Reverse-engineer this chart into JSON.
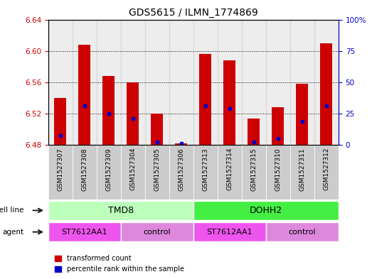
{
  "title": "GDS5615 / ILMN_1774869",
  "samples": [
    "GSM1527307",
    "GSM1527308",
    "GSM1527309",
    "GSM1527304",
    "GSM1527305",
    "GSM1527306",
    "GSM1527313",
    "GSM1527314",
    "GSM1527315",
    "GSM1527310",
    "GSM1527311",
    "GSM1527312"
  ],
  "bar_bottom": 6.48,
  "bar_tops": [
    6.54,
    6.608,
    6.568,
    6.56,
    6.52,
    6.482,
    6.596,
    6.588,
    6.514,
    6.528,
    6.558,
    6.61
  ],
  "percentile_values": [
    6.492,
    6.53,
    6.52,
    6.514,
    6.484,
    6.482,
    6.53,
    6.526,
    6.484,
    6.488,
    6.51,
    6.53
  ],
  "ylim_left": [
    6.48,
    6.64
  ],
  "ylim_right": [
    0,
    100
  ],
  "yticks_left": [
    6.48,
    6.52,
    6.56,
    6.6,
    6.64
  ],
  "yticks_right": [
    0,
    25,
    50,
    75,
    100
  ],
  "ytick_labels_right": [
    "0",
    "25",
    "50",
    "75",
    "100%"
  ],
  "bar_color": "#cc0000",
  "percentile_color": "#0000cc",
  "cell_line_groups": [
    {
      "label": "TMD8",
      "start": 0,
      "end": 5,
      "color": "#bbffbb"
    },
    {
      "label": "DOHH2",
      "start": 6,
      "end": 11,
      "color": "#44ee44"
    }
  ],
  "agent_groups": [
    {
      "label": "ST7612AA1",
      "start": 0,
      "end": 2,
      "color": "#ee55ee"
    },
    {
      "label": "control",
      "start": 3,
      "end": 5,
      "color": "#dd88dd"
    },
    {
      "label": "ST7612AA1",
      "start": 6,
      "end": 8,
      "color": "#ee55ee"
    },
    {
      "label": "control",
      "start": 9,
      "end": 11,
      "color": "#dd88dd"
    }
  ],
  "sample_bg_color": "#cccccc",
  "legend_red_label": "transformed count",
  "legend_blue_label": "percentile rank within the sample",
  "cell_line_label": "cell line",
  "agent_label": "agent",
  "bar_width": 0.5
}
